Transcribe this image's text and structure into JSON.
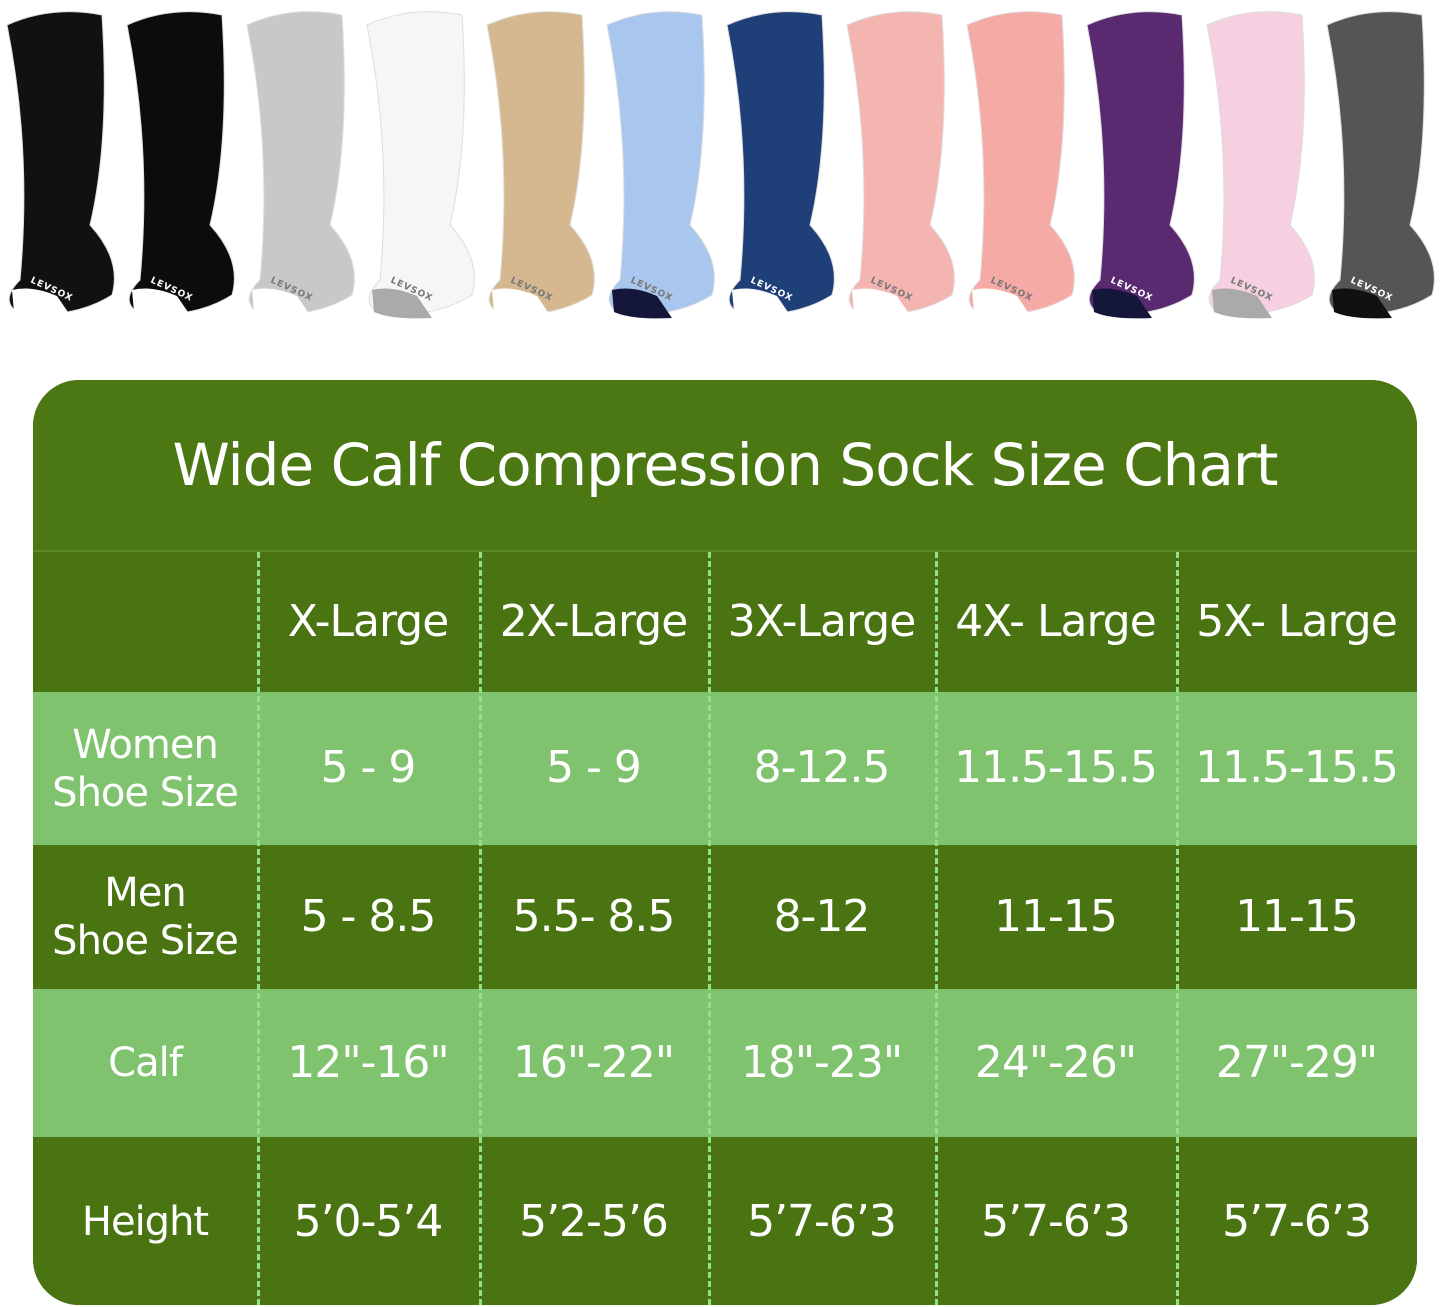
{
  "product_image": {
    "sock_colors": [
      "#111111",
      "#0c0c0c",
      "#c8c8c8",
      "#f6f6f6",
      "#d6b890",
      "#a9c6ee",
      "#1f3f78",
      "#f4b4b0",
      "#f6aaa6",
      "#5a2a70",
      "#f6d0e0",
      "#555555"
    ],
    "brand_text": "LEVSOX"
  },
  "size_chart": {
    "title": "Wide Calf Compression Sock Size Chart",
    "colors": {
      "dark_green": "#4a7412",
      "light_green": "#80c36f",
      "divider": "#8fe08a"
    },
    "columns": [
      "X-Large",
      "2X-Large",
      "3X-Large",
      "4X- Large",
      "5X- Large"
    ],
    "rows": [
      {
        "label": "Women\nShoe Size",
        "values": [
          "5 - 9",
          "5 - 9",
          "8-12.5",
          "11.5-15.5",
          "11.5-15.5"
        ]
      },
      {
        "label": "Men\nShoe Size",
        "values": [
          "5 - 8.5",
          "5.5- 8.5",
          "8-12",
          "11-15",
          "11-15"
        ]
      },
      {
        "label": "Calf",
        "values": [
          "12\"-16\"",
          "16\"-22\"",
          "18\"-23\"",
          "24\"-26\"",
          "27\"-29\""
        ]
      },
      {
        "label": "Height",
        "values": [
          "5’0-5’4",
          "5’2-5’6",
          "5’7-6’3",
          "5’7-6’3",
          "5’7-6’3"
        ]
      }
    ]
  }
}
